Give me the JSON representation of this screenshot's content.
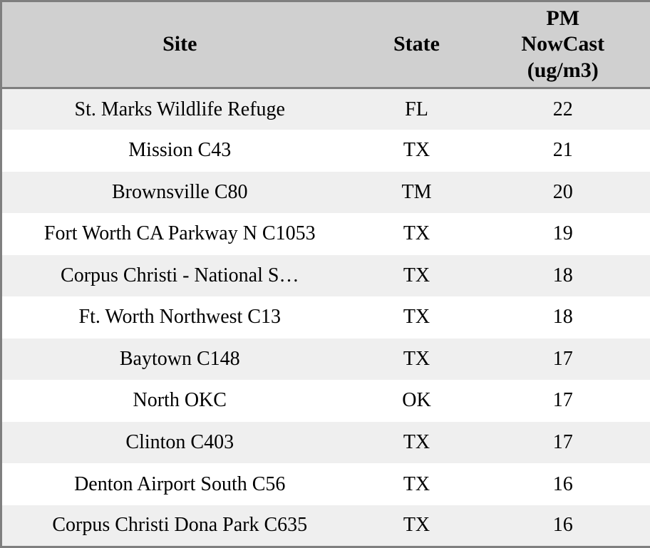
{
  "table": {
    "columns": [
      {
        "key": "site",
        "label": "Site"
      },
      {
        "key": "state",
        "label": "State"
      },
      {
        "key": "pm",
        "label": "PM\nNowCast\n(ug/m3)"
      }
    ],
    "rows": [
      {
        "site": "St. Marks Wildlife Refuge",
        "state": "FL",
        "pm": "22"
      },
      {
        "site": "Mission C43",
        "state": "TX",
        "pm": "21"
      },
      {
        "site": "Brownsville C80",
        "state": "TM",
        "pm": "20"
      },
      {
        "site": "Fort Worth CA Parkway N C1053",
        "state": "TX",
        "pm": "19"
      },
      {
        "site": "Corpus Christi - National S…",
        "state": "TX",
        "pm": "18"
      },
      {
        "site": "Ft. Worth Northwest C13",
        "state": "TX",
        "pm": "18"
      },
      {
        "site": "Baytown C148",
        "state": "TX",
        "pm": "17"
      },
      {
        "site": "North OKC",
        "state": "OK",
        "pm": "17"
      },
      {
        "site": "Clinton C403",
        "state": "TX",
        "pm": "17"
      },
      {
        "site": "Denton Airport South C56",
        "state": "TX",
        "pm": "16"
      },
      {
        "site": "Corpus Christi Dona Park C635",
        "state": "TX",
        "pm": "16"
      }
    ]
  },
  "colors": {
    "border": "#7f7f7f",
    "header_bg": "#d0d0d0",
    "stripe_bg": "#efefef",
    "row_bg": "#ffffff",
    "text": "#000000"
  }
}
